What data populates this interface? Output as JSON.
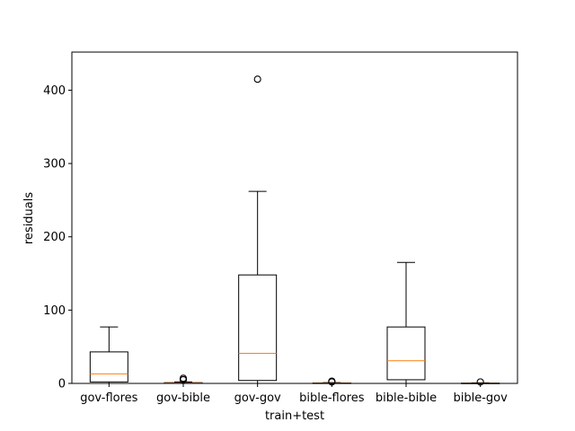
{
  "chart_data": {
    "type": "boxplot",
    "xlabel": "train+test",
    "ylabel": "residuals",
    "ylim": [
      0,
      452
    ],
    "yticks": [
      0,
      100,
      200,
      300,
      400
    ],
    "grid": false,
    "legend": "none",
    "colors": {
      "box": "#000000",
      "median": "#ff7f0e",
      "whisker": "#000000",
      "outlier": "#000000"
    },
    "categories": [
      "gov-flores",
      "gov-bible",
      "gov-gov",
      "bible-flores",
      "bible-bible",
      "bible-gov"
    ],
    "boxes": [
      {
        "label": "gov-flores",
        "whisker_low": 0,
        "q1": 2,
        "median": 13,
        "q3": 43,
        "whisker_high": 77,
        "outliers": []
      },
      {
        "label": "gov-bible",
        "whisker_low": 0,
        "q1": 0.2,
        "median": 0.5,
        "q3": 1,
        "whisker_high": 2,
        "outliers": [
          5,
          7
        ]
      },
      {
        "label": "gov-gov",
        "whisker_low": 0,
        "q1": 4,
        "median": 41,
        "q3": 148,
        "whisker_high": 262,
        "outliers": [
          415
        ]
      },
      {
        "label": "bible-flores",
        "whisker_low": 0,
        "q1": 0.1,
        "median": 0.3,
        "q3": 0.6,
        "whisker_high": 1,
        "outliers": [
          2,
          3
        ]
      },
      {
        "label": "bible-bible",
        "whisker_low": 0,
        "q1": 5,
        "median": 31,
        "q3": 77,
        "whisker_high": 165,
        "outliers": []
      },
      {
        "label": "bible-gov",
        "whisker_low": 0,
        "q1": 0.05,
        "median": 0.2,
        "q3": 0.4,
        "whisker_high": 0.8,
        "outliers": [
          2
        ]
      }
    ]
  }
}
